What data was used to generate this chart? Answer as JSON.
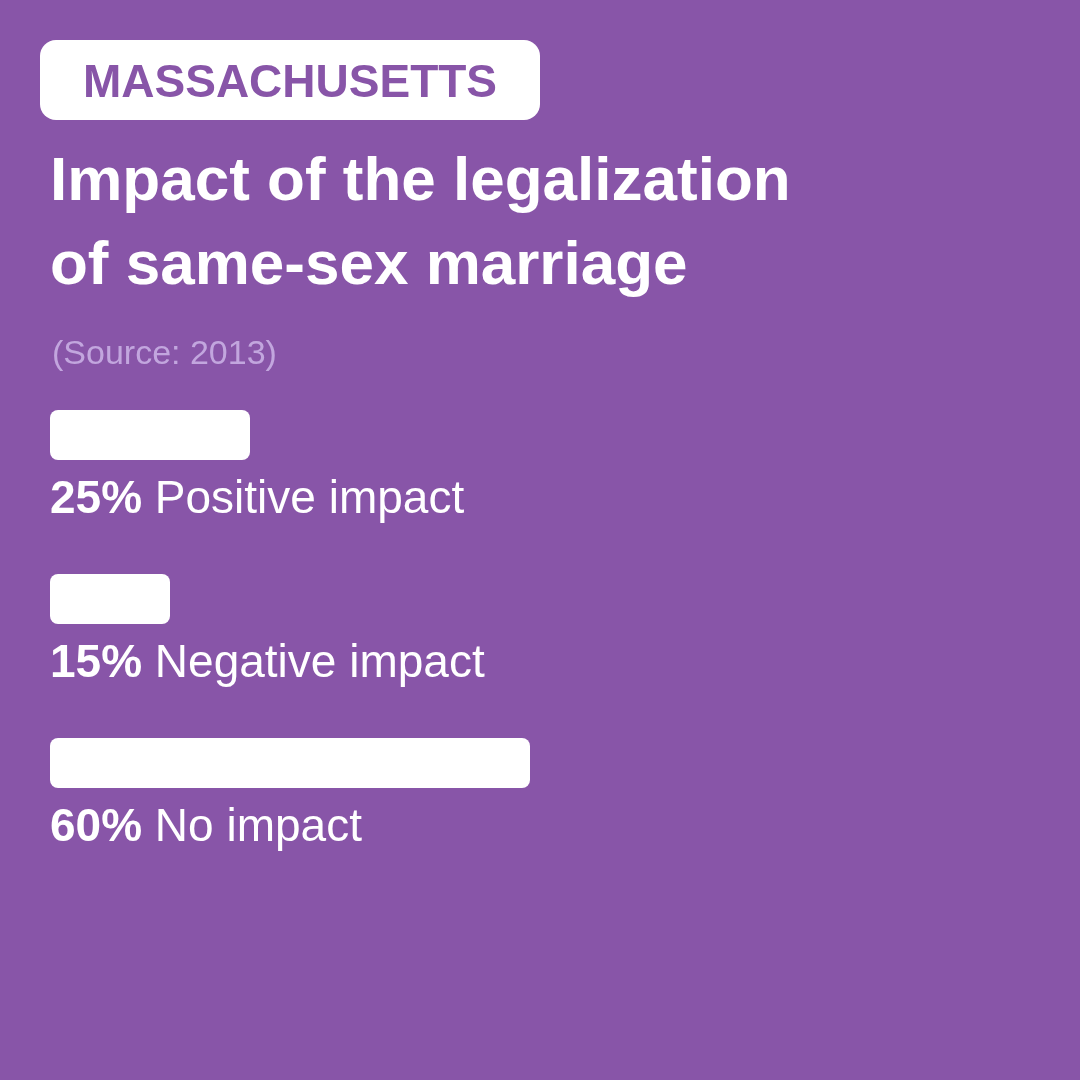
{
  "chart_data": {
    "type": "bar",
    "orientation": "horizontal",
    "subtitle": "MASSACHUSETTS",
    "title": "Impact of the legalization of same-sex marriage",
    "annotations": [
      "(Source: 2013)"
    ],
    "categories": [
      "Positive impact",
      "Negative impact",
      "No impact"
    ],
    "values": [
      25,
      15,
      60
    ],
    "value_labels": [
      "25%",
      "15%",
      "60%"
    ],
    "color": "#ffffff"
  }
}
